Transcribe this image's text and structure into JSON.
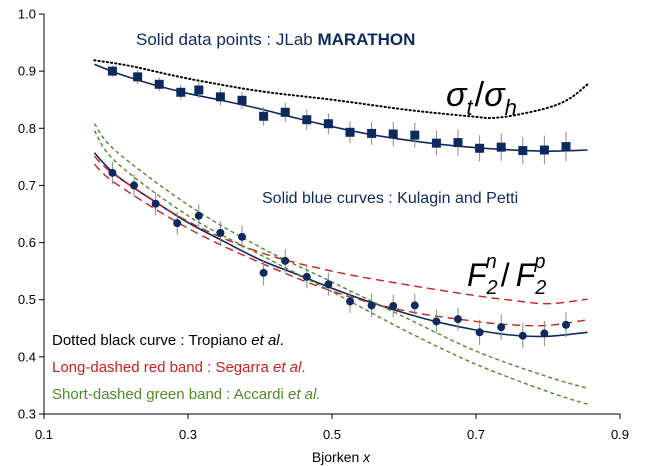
{
  "chart_data": {
    "type": "scatter",
    "xlabel": "Bjorken",
    "xlabel_var": "x",
    "xlim": [
      0.1,
      0.9
    ],
    "ylim": [
      0.3,
      1.0
    ],
    "x_ticks": [
      "0.1",
      "0.3",
      "0.5",
      "0.7",
      "0.9"
    ],
    "y_ticks": [
      "0.3",
      "0.4",
      "0.5",
      "0.6",
      "0.7",
      "0.8",
      "0.9",
      "1.0"
    ],
    "grid": false,
    "annotations": {
      "marathon": {
        "text": "Solid data points : JLab ",
        "bold": "MARATHON"
      },
      "kp": "Solid blue curves : Kulagin and Petti",
      "tropiano": {
        "text": "Dotted black curve : Tropiano ",
        "italic": "et al",
        "end": "."
      },
      "segarra": {
        "text": "Long-dashed red band : Segarra ",
        "italic": "et al",
        "end": "."
      },
      "accardi": {
        "text": "Short-dashed green band : Accardi ",
        "italic": "et al.",
        "end": ""
      },
      "sigma_label": {
        "a": "σ",
        "a_sub": "t",
        "sep": "/",
        "b": "σ",
        "b_sub": "h"
      },
      "f2_label": {
        "a": "F",
        "a_sub": "2",
        "a_sup": "n",
        "sep": "/",
        "b": "F",
        "b_sub": "2",
        "b_sup": "p"
      }
    },
    "colors": {
      "data": "#0d2a5e",
      "kp": "#0d2a5e",
      "tropiano": "#000000",
      "segarra": "#cc1f1f",
      "accardi": "#4f8a2a"
    },
    "series": [
      {
        "name": "σt/σh",
        "marker": "square",
        "points": [
          [
            0.195,
            0.9,
            0.01
          ],
          [
            0.23,
            0.89,
            0.012
          ],
          [
            0.26,
            0.877,
            0.012
          ],
          [
            0.29,
            0.863,
            0.013
          ],
          [
            0.315,
            0.867,
            0.014
          ],
          [
            0.345,
            0.855,
            0.015
          ],
          [
            0.375,
            0.849,
            0.015
          ],
          [
            0.405,
            0.821,
            0.016
          ],
          [
            0.435,
            0.828,
            0.017
          ],
          [
            0.465,
            0.815,
            0.018
          ],
          [
            0.495,
            0.808,
            0.018
          ],
          [
            0.525,
            0.793,
            0.019
          ],
          [
            0.555,
            0.791,
            0.02
          ],
          [
            0.585,
            0.79,
            0.021
          ],
          [
            0.615,
            0.788,
            0.022
          ],
          [
            0.645,
            0.774,
            0.022
          ],
          [
            0.675,
            0.775,
            0.023
          ],
          [
            0.705,
            0.765,
            0.023
          ],
          [
            0.735,
            0.767,
            0.024
          ],
          [
            0.765,
            0.761,
            0.024
          ],
          [
            0.795,
            0.762,
            0.025
          ],
          [
            0.825,
            0.768,
            0.026
          ]
        ]
      },
      {
        "name": "F2n/F2p",
        "marker": "circle",
        "points": [
          [
            0.195,
            0.722,
            0.02
          ],
          [
            0.225,
            0.7,
            0.02
          ],
          [
            0.255,
            0.668,
            0.02
          ],
          [
            0.285,
            0.634,
            0.02
          ],
          [
            0.315,
            0.647,
            0.02
          ],
          [
            0.345,
            0.617,
            0.02
          ],
          [
            0.375,
            0.61,
            0.02
          ],
          [
            0.405,
            0.547,
            0.022
          ],
          [
            0.435,
            0.568,
            0.02
          ],
          [
            0.465,
            0.54,
            0.02
          ],
          [
            0.495,
            0.527,
            0.02
          ],
          [
            0.525,
            0.497,
            0.02
          ],
          [
            0.555,
            0.49,
            0.02
          ],
          [
            0.585,
            0.489,
            0.02
          ],
          [
            0.615,
            0.49,
            0.02
          ],
          [
            0.645,
            0.462,
            0.02
          ],
          [
            0.675,
            0.466,
            0.02
          ],
          [
            0.705,
            0.443,
            0.022
          ],
          [
            0.735,
            0.452,
            0.022
          ],
          [
            0.765,
            0.437,
            0.022
          ],
          [
            0.795,
            0.441,
            0.022
          ],
          [
            0.825,
            0.456,
            0.022
          ]
        ]
      }
    ],
    "curves": [
      {
        "style": "kp",
        "points": [
          [
            0.17,
            0.912
          ],
          [
            0.2,
            0.897
          ],
          [
            0.25,
            0.877
          ],
          [
            0.3,
            0.861
          ],
          [
            0.35,
            0.848
          ],
          [
            0.4,
            0.834
          ],
          [
            0.45,
            0.818
          ],
          [
            0.5,
            0.803
          ],
          [
            0.55,
            0.79
          ],
          [
            0.6,
            0.78
          ],
          [
            0.65,
            0.772
          ],
          [
            0.7,
            0.766
          ],
          [
            0.75,
            0.762
          ],
          [
            0.8,
            0.76
          ],
          [
            0.855,
            0.762
          ]
        ]
      },
      {
        "style": "kp",
        "points": [
          [
            0.17,
            0.757
          ],
          [
            0.2,
            0.718
          ],
          [
            0.25,
            0.675
          ],
          [
            0.3,
            0.635
          ],
          [
            0.35,
            0.602
          ],
          [
            0.4,
            0.57
          ],
          [
            0.45,
            0.545
          ],
          [
            0.5,
            0.52
          ],
          [
            0.55,
            0.497
          ],
          [
            0.6,
            0.477
          ],
          [
            0.65,
            0.46
          ],
          [
            0.7,
            0.447
          ],
          [
            0.75,
            0.438
          ],
          [
            0.8,
            0.436
          ],
          [
            0.855,
            0.443
          ]
        ]
      },
      {
        "style": "tropiano",
        "points": [
          [
            0.17,
            0.919
          ],
          [
            0.22,
            0.909
          ],
          [
            0.3,
            0.887
          ],
          [
            0.4,
            0.865
          ],
          [
            0.5,
            0.85
          ],
          [
            0.6,
            0.833
          ],
          [
            0.65,
            0.826
          ],
          [
            0.7,
            0.82
          ],
          [
            0.72,
            0.818
          ],
          [
            0.75,
            0.822
          ],
          [
            0.8,
            0.836
          ],
          [
            0.83,
            0.852
          ],
          [
            0.855,
            0.877
          ]
        ]
      },
      {
        "style": "segarra",
        "points": [
          [
            0.17,
            0.751
          ],
          [
            0.2,
            0.717
          ],
          [
            0.3,
            0.637
          ],
          [
            0.4,
            0.583
          ],
          [
            0.5,
            0.55
          ],
          [
            0.6,
            0.527
          ],
          [
            0.7,
            0.507
          ],
          [
            0.75,
            0.499
          ],
          [
            0.8,
            0.493
          ],
          [
            0.855,
            0.501
          ]
        ]
      },
      {
        "style": "segarra",
        "points": [
          [
            0.17,
            0.737
          ],
          [
            0.2,
            0.703
          ],
          [
            0.3,
            0.625
          ],
          [
            0.4,
            0.565
          ],
          [
            0.5,
            0.515
          ],
          [
            0.6,
            0.481
          ],
          [
            0.7,
            0.462
          ],
          [
            0.75,
            0.456
          ],
          [
            0.8,
            0.455
          ],
          [
            0.855,
            0.465
          ]
        ]
      },
      {
        "style": "accardi",
        "points": [
          [
            0.17,
            0.808
          ],
          [
            0.2,
            0.76
          ],
          [
            0.3,
            0.666
          ],
          [
            0.4,
            0.592
          ],
          [
            0.5,
            0.531
          ],
          [
            0.6,
            0.47
          ],
          [
            0.7,
            0.41
          ],
          [
            0.8,
            0.365
          ],
          [
            0.855,
            0.345
          ]
        ]
      },
      {
        "style": "accardi",
        "points": [
          [
            0.17,
            0.796
          ],
          [
            0.2,
            0.741
          ],
          [
            0.3,
            0.647
          ],
          [
            0.4,
            0.579
          ],
          [
            0.5,
            0.514
          ],
          [
            0.6,
            0.447
          ],
          [
            0.7,
            0.387
          ],
          [
            0.8,
            0.339
          ],
          [
            0.855,
            0.317
          ]
        ]
      }
    ]
  }
}
